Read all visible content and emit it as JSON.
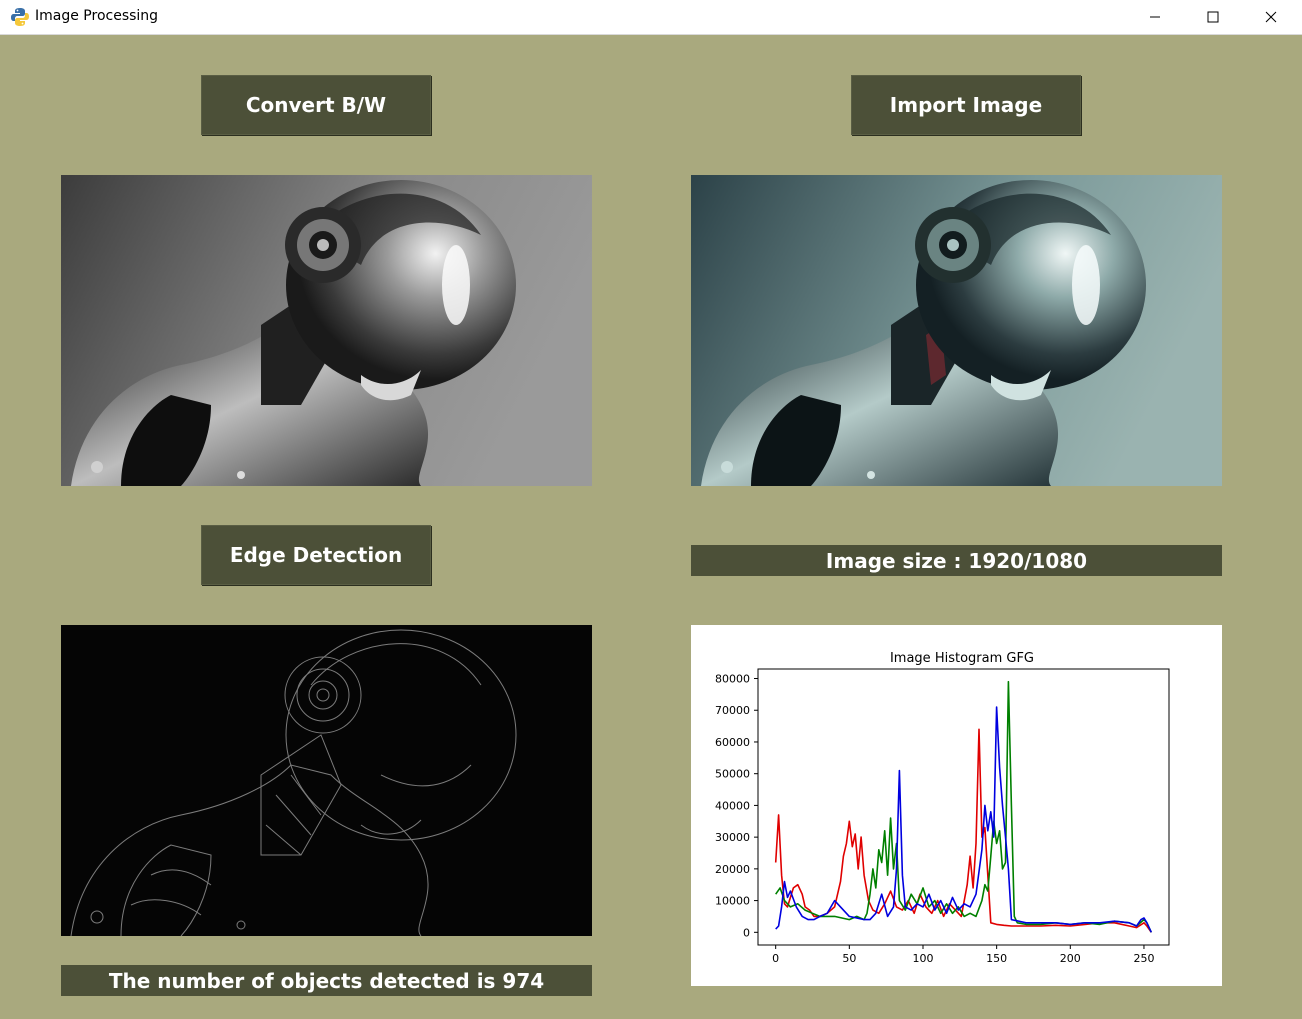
{
  "window": {
    "title": "Image Processing",
    "app_icon": "python-icon"
  },
  "buttons": {
    "convert_bw": "Convert B/W",
    "import_image": "Import Image",
    "edge_detection": "Edge Detection"
  },
  "labels": {
    "image_size": "Image size : 1920/1080",
    "objects_detected": "The number of objects detected is 974"
  },
  "images": {
    "bw": "robot-grayscale-image",
    "original": "robot-color-image",
    "edges": "robot-edge-image"
  },
  "colors": {
    "background": "#a9a97e",
    "button": "#4c5038",
    "red_channel": "#e00000",
    "green_channel": "#008000",
    "blue_channel": "#0000e0"
  },
  "chart_data": {
    "type": "line",
    "title": "Image Histogram GFG",
    "xlabel": "",
    "ylabel": "",
    "xlim": [
      -12,
      267
    ],
    "ylim": [
      -4000,
      83000
    ],
    "xticks": [
      0,
      50,
      100,
      150,
      200,
      250
    ],
    "yticks": [
      0,
      10000,
      20000,
      30000,
      40000,
      50000,
      60000,
      70000,
      80000
    ],
    "grid": false,
    "series": [
      {
        "color": "#e00000",
        "x": [
          0,
          2,
          4,
          6,
          8,
          10,
          12,
          15,
          18,
          20,
          23,
          26,
          30,
          35,
          40,
          44,
          46,
          48,
          50,
          52,
          54,
          56,
          58,
          60,
          63,
          66,
          70,
          74,
          78,
          82,
          86,
          90,
          94,
          98,
          102,
          106,
          110,
          114,
          118,
          122,
          126,
          130,
          132,
          134,
          136,
          138,
          140,
          142,
          144,
          146,
          150,
          155,
          160,
          170,
          180,
          190,
          200,
          210,
          220,
          230,
          240,
          245,
          250,
          252,
          255
        ],
        "values": [
          22000,
          37000,
          18000,
          9000,
          8000,
          11000,
          14000,
          15000,
          12000,
          8000,
          7000,
          5000,
          5000,
          6000,
          8000,
          16000,
          24000,
          28000,
          35000,
          27000,
          31000,
          20000,
          30000,
          18000,
          10000,
          7000,
          6000,
          9000,
          13000,
          8000,
          7000,
          10000,
          6000,
          12000,
          8000,
          6000,
          10000,
          5000,
          9000,
          7000,
          5000,
          15000,
          24000,
          14000,
          28000,
          64000,
          30000,
          33000,
          18000,
          3000,
          2500,
          2200,
          2000,
          2000,
          2000,
          2200,
          2000,
          2500,
          3000,
          3000,
          2000,
          1500,
          3000,
          2000,
          0
        ]
      },
      {
        "color": "#008000",
        "x": [
          0,
          3,
          6,
          10,
          15,
          20,
          25,
          30,
          40,
          50,
          55,
          60,
          62,
          64,
          66,
          68,
          70,
          72,
          74,
          76,
          78,
          80,
          82,
          84,
          88,
          92,
          96,
          100,
          104,
          108,
          112,
          116,
          120,
          124,
          128,
          132,
          136,
          140,
          142,
          144,
          146,
          148,
          150,
          152,
          154,
          156,
          158,
          160,
          162,
          164,
          170,
          180,
          190,
          200,
          210,
          220,
          230,
          240,
          245,
          250,
          252,
          255
        ],
        "values": [
          12000,
          14000,
          10000,
          8000,
          9000,
          7000,
          6000,
          5000,
          5000,
          4000,
          5000,
          4000,
          6000,
          12000,
          20000,
          14000,
          26000,
          22000,
          32000,
          18000,
          36000,
          20000,
          28000,
          10000,
          7000,
          12000,
          9000,
          14000,
          8000,
          10000,
          6000,
          9000,
          6000,
          8000,
          5000,
          6000,
          5000,
          10000,
          15000,
          13000,
          24000,
          35000,
          28000,
          32000,
          20000,
          22000,
          79000,
          40000,
          5000,
          3000,
          2500,
          2500,
          3000,
          2500,
          3000,
          2500,
          3500,
          3000,
          2000,
          4000,
          3000,
          0
        ]
      },
      {
        "color": "#0000e0",
        "x": [
          0,
          2,
          4,
          6,
          8,
          10,
          14,
          18,
          22,
          26,
          30,
          35,
          40,
          50,
          60,
          64,
          68,
          72,
          76,
          80,
          82,
          84,
          86,
          88,
          92,
          96,
          100,
          104,
          108,
          112,
          116,
          120,
          124,
          128,
          132,
          136,
          140,
          142,
          144,
          146,
          148,
          150,
          152,
          154,
          156,
          158,
          160,
          170,
          180,
          190,
          200,
          210,
          220,
          230,
          240,
          245,
          248,
          250,
          252,
          255
        ],
        "values": [
          1000,
          2000,
          8000,
          16000,
          11000,
          13000,
          8000,
          5000,
          4000,
          4000,
          5000,
          6000,
          10000,
          5000,
          4000,
          4000,
          6000,
          12000,
          5000,
          8000,
          20000,
          51000,
          18000,
          8000,
          7000,
          9000,
          8000,
          12000,
          7000,
          10000,
          6000,
          11000,
          7000,
          9000,
          8000,
          12000,
          26000,
          40000,
          32000,
          38000,
          30000,
          71000,
          52000,
          40000,
          30000,
          20000,
          4000,
          3000,
          3000,
          3000,
          2500,
          3000,
          3000,
          3500,
          3000,
          2000,
          4000,
          4500,
          3000,
          0
        ]
      }
    ]
  }
}
